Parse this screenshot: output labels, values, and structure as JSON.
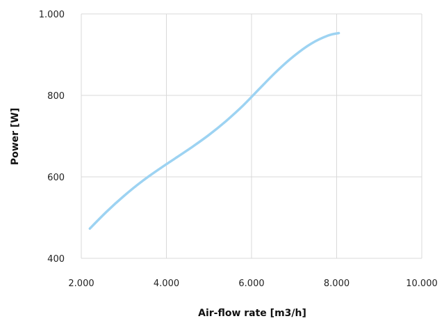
{
  "chart_data": {
    "type": "line",
    "xlabel": "Air-flow rate [m3/h]",
    "ylabel": "Power [W]",
    "xlim": [
      2000,
      10000
    ],
    "ylim": [
      400,
      1000
    ],
    "grid": true,
    "x_ticks": [
      2000,
      4000,
      6000,
      8000,
      10000
    ],
    "x_tick_labels": [
      "2.000",
      "4.000",
      "6.000",
      "8.000",
      "10.000"
    ],
    "y_ticks": [
      400,
      600,
      800,
      1000
    ],
    "y_tick_labels": [
      "400",
      "600",
      "800",
      "1.000"
    ],
    "series": [
      {
        "color": "#9dd3f2",
        "x": [
          2200,
          2600,
          3000,
          3400,
          3800,
          4200,
          4600,
          5000,
          5400,
          5800,
          6200,
          6600,
          7000,
          7400,
          7800,
          8050
        ],
        "y": [
          473,
          515,
          553,
          587,
          617,
          645,
          673,
          703,
          737,
          775,
          818,
          860,
          897,
          927,
          947,
          953
        ]
      }
    ]
  }
}
